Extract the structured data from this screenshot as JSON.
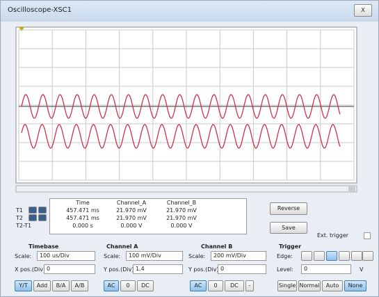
{
  "window": {
    "title": "Oscilloscope-XSC1",
    "close": "X"
  },
  "readout": {
    "headers": [
      "Time",
      "Channel_A",
      "Channel_B"
    ],
    "rows": [
      {
        "label": "T1",
        "values": [
          "457.471 ms",
          "21.970 mV",
          "21.970 mV"
        ]
      },
      {
        "label": "T2",
        "values": [
          "457.471 ms",
          "21.970 mV",
          "21.970 mV"
        ]
      },
      {
        "label": "T2-T1",
        "values": [
          "0.000 s",
          "0.000 V",
          "0.000 V"
        ]
      }
    ]
  },
  "buttons": {
    "reverse": "Reverse",
    "save": "Save",
    "ext_trigger": "Ext. trigger"
  },
  "timebase": {
    "title": "Timebase",
    "scale_label": "Scale:",
    "scale": "100 us/Div",
    "pos_label": "X pos.(Div):",
    "pos": "0",
    "modes": [
      "Y/T",
      "Add",
      "B/A",
      "A/B"
    ]
  },
  "channel_a": {
    "title": "Channel A",
    "scale_label": "Scale:",
    "scale": "100 mV/Div",
    "pos_label": "Y pos.(Div):",
    "pos": "1.4",
    "coupling": [
      "AC",
      "0",
      "DC"
    ]
  },
  "channel_b": {
    "title": "Channel B",
    "scale_label": "Scale:",
    "scale": "200 mV/Div",
    "pos_label": "Y pos.(Div):",
    "pos": "0",
    "coupling": [
      "AC",
      "0",
      "DC",
      "-"
    ]
  },
  "trigger": {
    "title": "Trigger",
    "edge_label": "Edge:",
    "level_label": "Level:",
    "level": "0",
    "level_unit": "V",
    "modes": [
      "Single",
      "Normal",
      "Auto",
      "None"
    ]
  }
}
